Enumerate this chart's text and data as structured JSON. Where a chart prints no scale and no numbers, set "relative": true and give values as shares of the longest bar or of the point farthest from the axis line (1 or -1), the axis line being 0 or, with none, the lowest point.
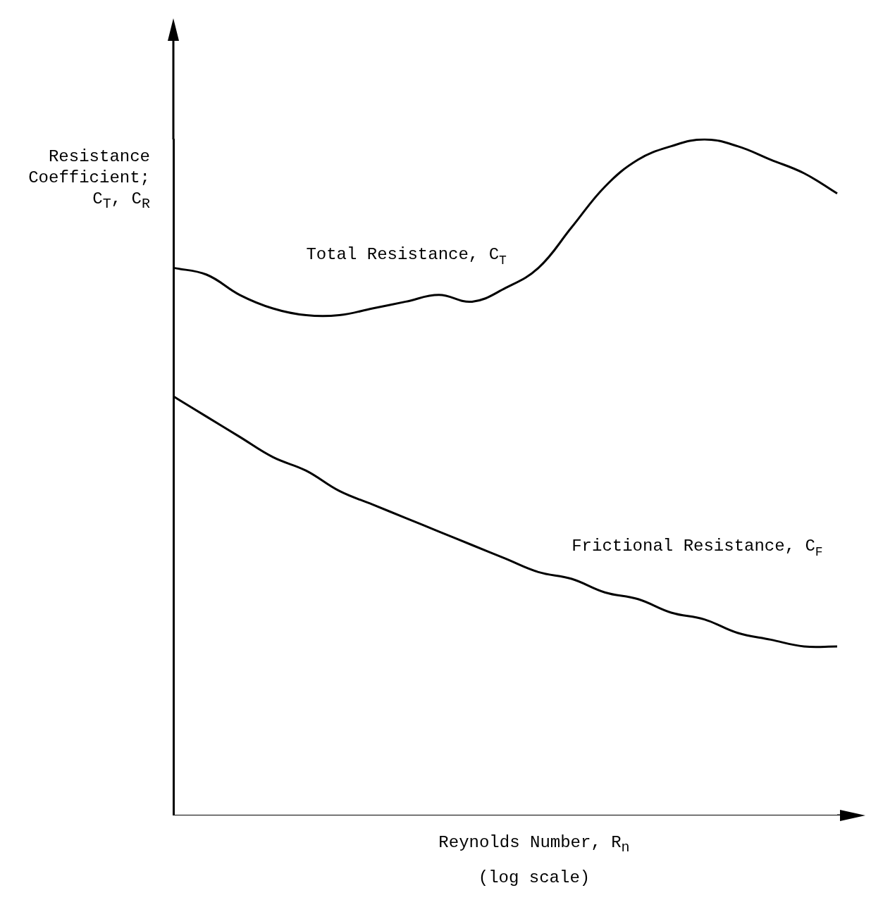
{
  "chart_data": {
    "type": "line",
    "relative": true,
    "ylabel": "Resistance Coefficient; C$_{T}$, C$_{R}$",
    "xlabel": "Reynolds Number, R$_{n}$",
    "annotations": [
      "(log scale)"
    ],
    "categories": [
      null,
      null,
      null,
      null,
      null,
      null,
      null,
      null,
      null,
      null,
      null,
      null,
      null,
      null,
      null,
      null,
      null,
      null,
      null,
      null,
      null
    ],
    "series": [
      {
        "name": "Total Resistance, C$_{T}$",
        "color": "#000000",
        "values": [
          0.81,
          0.8,
          0.77,
          0.75,
          0.74,
          0.74,
          0.75,
          0.76,
          0.77,
          0.76,
          0.78,
          0.81,
          0.87,
          0.93,
          0.97,
          0.99,
          1,
          0.99,
          0.97,
          0.95,
          0.92
        ]
      },
      {
        "name": "Frictional Resistance, C$_{F}$",
        "color": "#000000",
        "values": [
          0.62,
          0.59,
          0.56,
          0.53,
          0.51,
          0.48,
          0.46,
          0.44,
          0.42,
          0.4,
          0.38,
          0.36,
          0.35,
          0.33,
          0.32,
          0.3,
          0.29,
          0.27,
          0.26,
          0.25,
          0.25
        ]
      }
    ],
    "grid": false,
    "legend": false,
    "marker": "none",
    "line_style": "solid"
  }
}
